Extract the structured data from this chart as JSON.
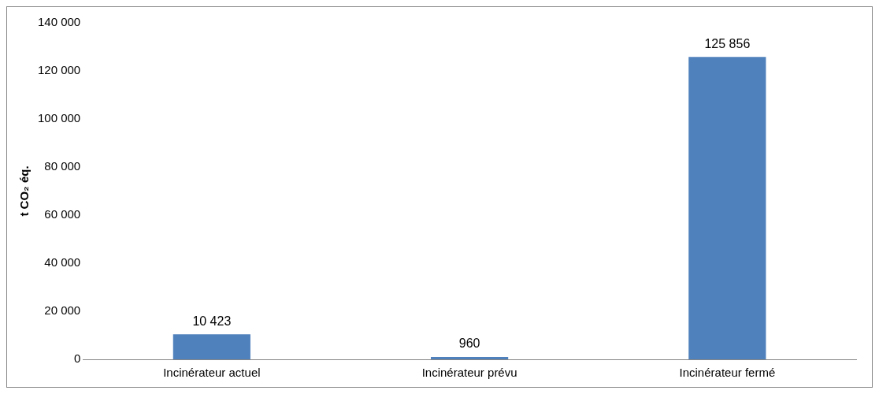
{
  "chart_data": {
    "type": "bar",
    "ylabel": "t CO₂ éq.",
    "categories": [
      "Incinérateur actuel",
      "Incinérateur prévu",
      "Incinérateur fermé"
    ],
    "values": [
      10423,
      960,
      125856
    ],
    "value_labels": [
      "10 423",
      "960",
      "125 856"
    ],
    "color": "#4f81bd",
    "ylim": [
      0,
      140000
    ],
    "yticks": [
      {
        "value": 0,
        "label": "0"
      },
      {
        "value": 20000,
        "label": "20 000"
      },
      {
        "value": 40000,
        "label": "40 000"
      },
      {
        "value": 60000,
        "label": "60 000"
      },
      {
        "value": 80000,
        "label": "80 000"
      },
      {
        "value": 100000,
        "label": "100 000"
      },
      {
        "value": 120000,
        "label": "120 000"
      },
      {
        "value": 140000,
        "label": "140 000"
      }
    ],
    "grid": false,
    "legend": false
  }
}
